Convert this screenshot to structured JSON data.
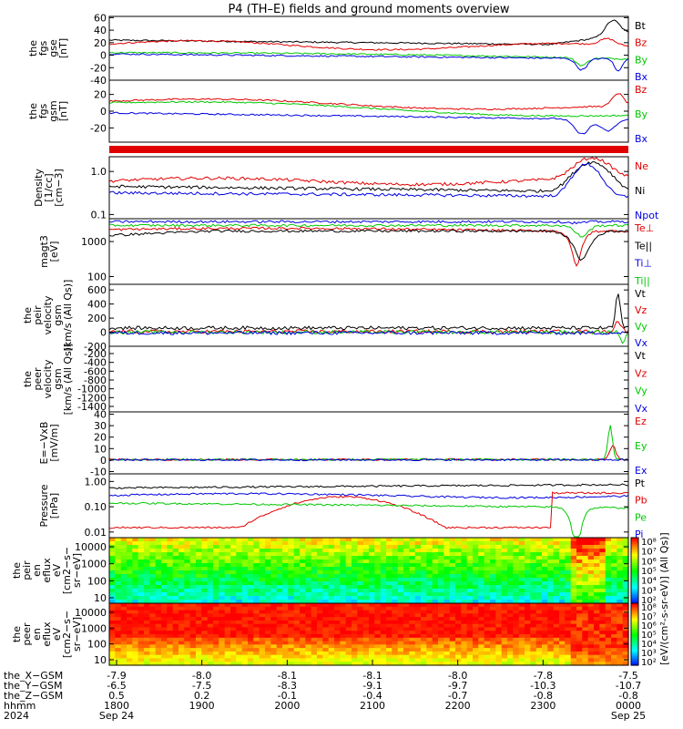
{
  "title": "P4 (TH–E) fields and ground moments overview",
  "colors": {
    "black": "#000000",
    "red": "#e00000",
    "green": "#00c800",
    "blue": "#0000e0"
  },
  "chart_data": [
    {
      "type": "line",
      "ylabel": [
        "the",
        "fgs",
        "gse",
        "[nT]"
      ],
      "yticks": [
        60,
        40,
        20,
        0,
        -20,
        -40
      ],
      "ylim": [
        -40,
        62
      ],
      "legend": [
        {
          "name": "Bt",
          "color": "black"
        },
        {
          "name": "Bz",
          "color": "red"
        },
        {
          "name": "By",
          "color": "green"
        },
        {
          "name": "Bx",
          "color": "blue"
        }
      ]
    },
    {
      "type": "line",
      "ylabel": [
        "the",
        "fgs",
        "gsm",
        "[nT]"
      ],
      "yticks": [
        20,
        0,
        -20
      ],
      "ylim": [
        -37,
        37
      ],
      "legend": [
        {
          "name": "Bz",
          "color": "red"
        },
        {
          "name": "By",
          "color": "green"
        },
        {
          "name": "Bx",
          "color": "blue"
        }
      ]
    },
    {
      "type": "line",
      "ylabel": [
        "Density",
        "[1/cc]",
        "[cm−3]"
      ],
      "yticks": [
        "1.0",
        "0.1"
      ],
      "log": true,
      "legend": [
        {
          "name": "Ne",
          "color": "red"
        },
        {
          "name": "Ni",
          "color": "black"
        },
        {
          "name": "Npot",
          "color": "blue"
        }
      ]
    },
    {
      "type": "line",
      "ylabel": [
        "magt3",
        "[eV]"
      ],
      "yticks": [
        1000,
        100
      ],
      "log": true,
      "legend": [
        {
          "name": "Te⊥",
          "color": "red"
        },
        {
          "name": "Te||",
          "color": "black"
        },
        {
          "name": "Ti⊥",
          "color": "blue"
        },
        {
          "name": "Ti||",
          "color": "green"
        }
      ]
    },
    {
      "type": "line",
      "ylabel": [
        "the",
        "peir",
        "velocity",
        "gsm",
        "[km/s (All Qs)]"
      ],
      "yticks": [
        600,
        400,
        200,
        0,
        -200
      ],
      "ylim": [
        -200,
        680
      ],
      "legend": [
        {
          "name": "Vt",
          "color": "black"
        },
        {
          "name": "Vz",
          "color": "red"
        },
        {
          "name": "Vy",
          "color": "green"
        },
        {
          "name": "Vx",
          "color": "blue"
        }
      ]
    },
    {
      "type": "line",
      "ylabel": [
        "the",
        "peer",
        "velocity",
        "gsm",
        "[km/s (All Qs)]"
      ],
      "yticks": [
        -200,
        -400,
        -600,
        -800,
        -1000,
        -1200,
        -1400
      ],
      "legend": [
        {
          "name": "Vt",
          "color": "black"
        },
        {
          "name": "Vz",
          "color": "red"
        },
        {
          "name": "Vy",
          "color": "green"
        },
        {
          "name": "Vx",
          "color": "blue"
        }
      ]
    },
    {
      "type": "line",
      "ylabel": [
        "E=−VxB",
        "[mV/m]"
      ],
      "yticks": [
        40,
        30,
        20,
        10,
        0,
        -10
      ],
      "ylim": [
        -12,
        42
      ],
      "legend": [
        {
          "name": "Ez",
          "color": "red"
        },
        {
          "name": "Ey",
          "color": "green"
        },
        {
          "name": "Ex",
          "color": "blue"
        }
      ]
    },
    {
      "type": "line",
      "ylabel": [
        "Pressure",
        "[nPa]"
      ],
      "yticks": [
        "1.00",
        "0.10",
        "0.01"
      ],
      "log": true,
      "legend": [
        {
          "name": "Pt",
          "color": "black"
        },
        {
          "name": "Pb",
          "color": "red"
        },
        {
          "name": "Pe",
          "color": "green"
        },
        {
          "name": "Pi",
          "color": "blue"
        }
      ]
    },
    {
      "type": "heatmap",
      "ylabel": [
        "the",
        "peir",
        "en",
        "eflux",
        "eV",
        "[cm2−s−",
        "sr−eV]"
      ],
      "yticks": [
        10000,
        1000,
        100,
        10
      ]
    },
    {
      "type": "heatmap",
      "ylabel": [
        "the",
        "peer",
        "en",
        "eflux",
        "eV",
        "[cm2−s−",
        "sr−eV]"
      ],
      "yticks": [
        10000,
        1000,
        100,
        10
      ]
    }
  ],
  "colorbar": {
    "ticks_top": [
      "10⁸",
      "10⁷",
      "10⁶",
      "10⁵",
      "10⁴",
      "10³",
      "10²"
    ],
    "ticks_bottom": [
      "10⁸",
      "10⁷",
      "10⁶",
      "10⁵",
      "10⁴",
      "10³",
      "10²"
    ],
    "label": "[eV/(cm²-s-sr-eV)] (All Qs)]"
  },
  "time_axis": {
    "rows": [
      {
        "label": "the_X−GSM",
        "values": [
          "-7.9",
          "-8.0",
          "-8.1",
          "-8.1",
          "-8.0",
          "-7.8",
          "-7.5"
        ]
      },
      {
        "label": "the_Y−GSM",
        "values": [
          "-6.5",
          "-7.5",
          "-8.3",
          "-9.1",
          "-9.7",
          "-10.3",
          "-10.7"
        ]
      },
      {
        "label": "the_Z−GSM",
        "values": [
          "0.5",
          "0.2",
          "-0.1",
          "-0.4",
          "-0.7",
          "-0.8",
          "-0.8"
        ]
      },
      {
        "label": "hhmm",
        "values": [
          "1800",
          "1900",
          "2000",
          "2100",
          "2200",
          "2300",
          "0000"
        ]
      },
      {
        "label": "2024",
        "values": [
          "Sep 24",
          "",
          "",
          "",
          "",
          "",
          "Sep 25"
        ]
      }
    ]
  }
}
